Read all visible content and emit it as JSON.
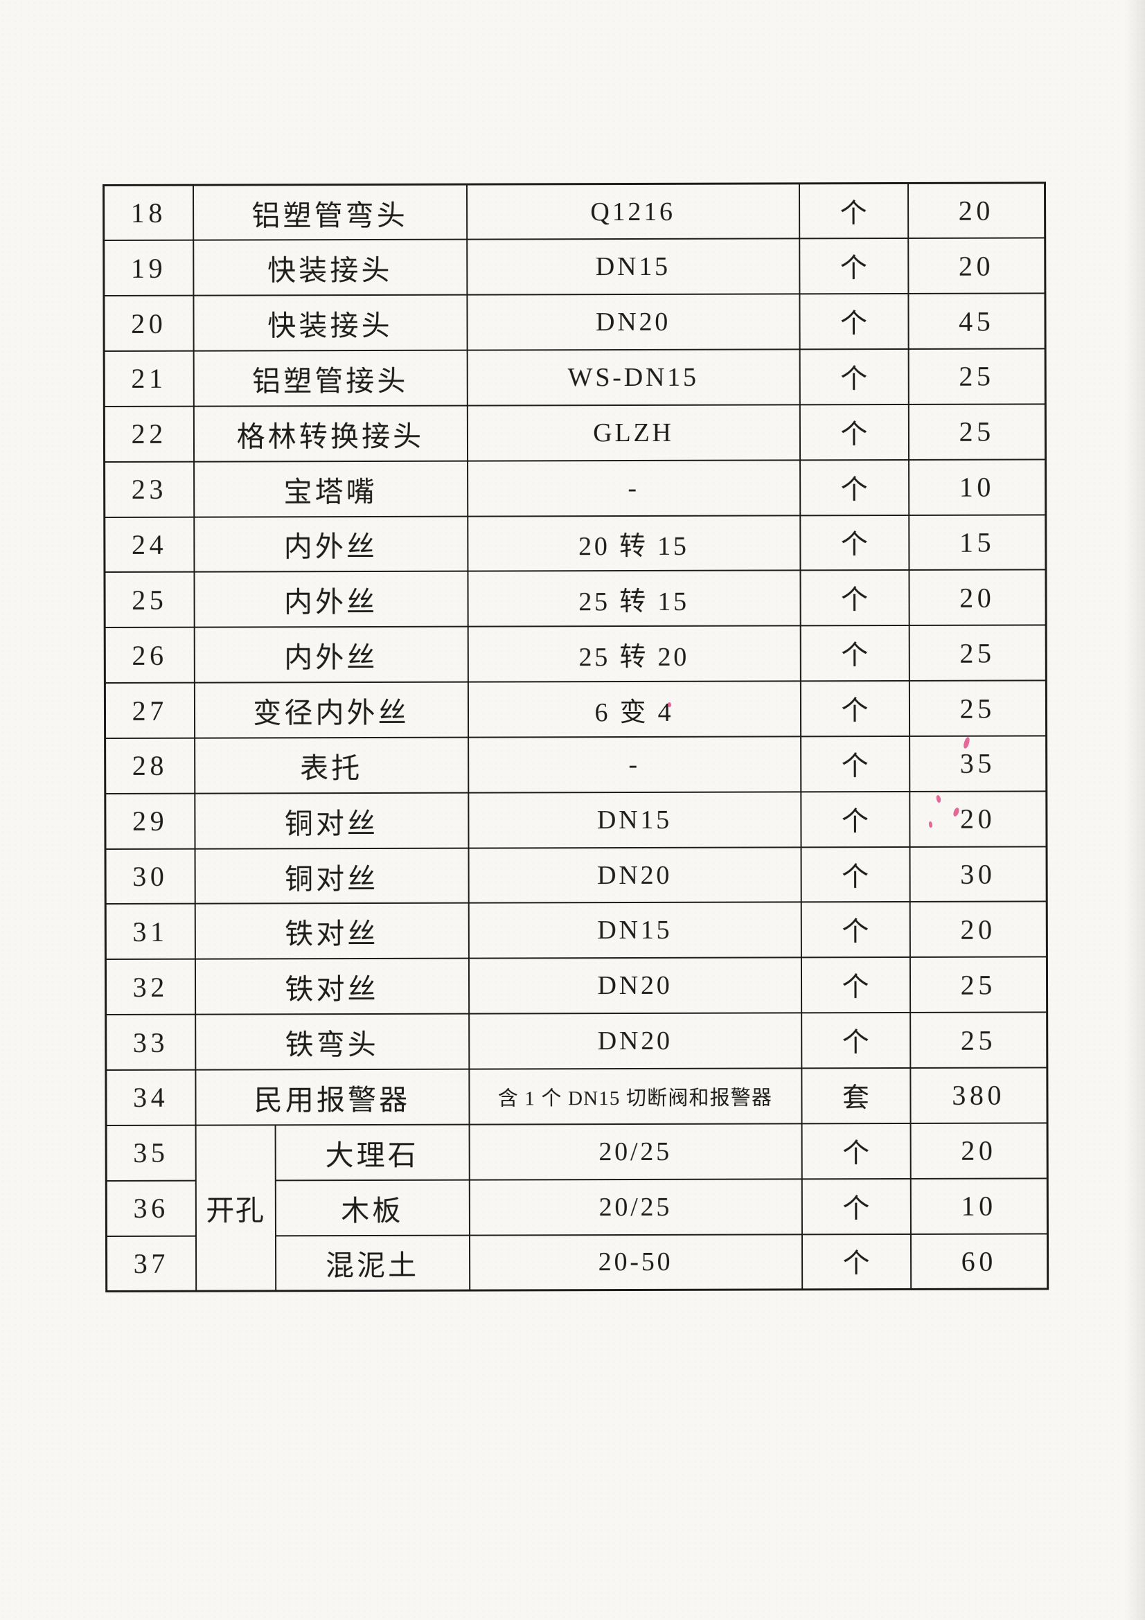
{
  "colors": {
    "ink": "#1d1d1b",
    "paper": "#f8f7f4",
    "line": "#1c1c1c",
    "artifact_pink": "#e0357a"
  },
  "table": {
    "group_label": "开孔",
    "rows": [
      {
        "no": "18",
        "name": "铝塑管弯头",
        "spec": "Q1216",
        "unit": "个",
        "qty": "20"
      },
      {
        "no": "19",
        "name": "快装接头",
        "spec": "DN15",
        "unit": "个",
        "qty": "20"
      },
      {
        "no": "20",
        "name": "快装接头",
        "spec": "DN20",
        "unit": "个",
        "qty": "45"
      },
      {
        "no": "21",
        "name": "铝塑管接头",
        "spec": "WS-DN15",
        "unit": "个",
        "qty": "25"
      },
      {
        "no": "22",
        "name": "格林转换接头",
        "spec": "GLZH",
        "unit": "个",
        "qty": "25"
      },
      {
        "no": "23",
        "name": "宝塔嘴",
        "spec": "-",
        "unit": "个",
        "qty": "10"
      },
      {
        "no": "24",
        "name": "内外丝",
        "spec": "20 转 15",
        "unit": "个",
        "qty": "15"
      },
      {
        "no": "25",
        "name": "内外丝",
        "spec": "25 转 15",
        "unit": "个",
        "qty": "20"
      },
      {
        "no": "26",
        "name": "内外丝",
        "spec": "25 转 20",
        "unit": "个",
        "qty": "25"
      },
      {
        "no": "27",
        "name": "变径内外丝",
        "spec": "6 变 4",
        "unit": "个",
        "qty": "25"
      },
      {
        "no": "28",
        "name": "表托",
        "spec": "-",
        "unit": "个",
        "qty": "35"
      },
      {
        "no": "29",
        "name": "铜对丝",
        "spec": "DN15",
        "unit": "个",
        "qty": "20"
      },
      {
        "no": "30",
        "name": "铜对丝",
        "spec": "DN20",
        "unit": "个",
        "qty": "30"
      },
      {
        "no": "31",
        "name": "铁对丝",
        "spec": "DN15",
        "unit": "个",
        "qty": "20"
      },
      {
        "no": "32",
        "name": "铁对丝",
        "spec": "DN20",
        "unit": "个",
        "qty": "25"
      },
      {
        "no": "33",
        "name": "铁弯头",
        "spec": "DN20",
        "unit": "个",
        "qty": "25"
      },
      {
        "no": "34",
        "name": "民用报警器",
        "spec": "含 1 个 DN15 切断阀和报警器",
        "unit": "套",
        "qty": "380"
      },
      {
        "no": "35",
        "group": {
          "label": "开孔",
          "span": 3
        },
        "name": "大理石",
        "spec": "20/25",
        "unit": "个",
        "qty": "20"
      },
      {
        "no": "36",
        "grouped": true,
        "name": "木板",
        "spec": "20/25",
        "unit": "个",
        "qty": "10"
      },
      {
        "no": "37",
        "grouped": true,
        "name": "混泥土",
        "spec": "20-50",
        "unit": "个",
        "qty": "60"
      }
    ]
  }
}
